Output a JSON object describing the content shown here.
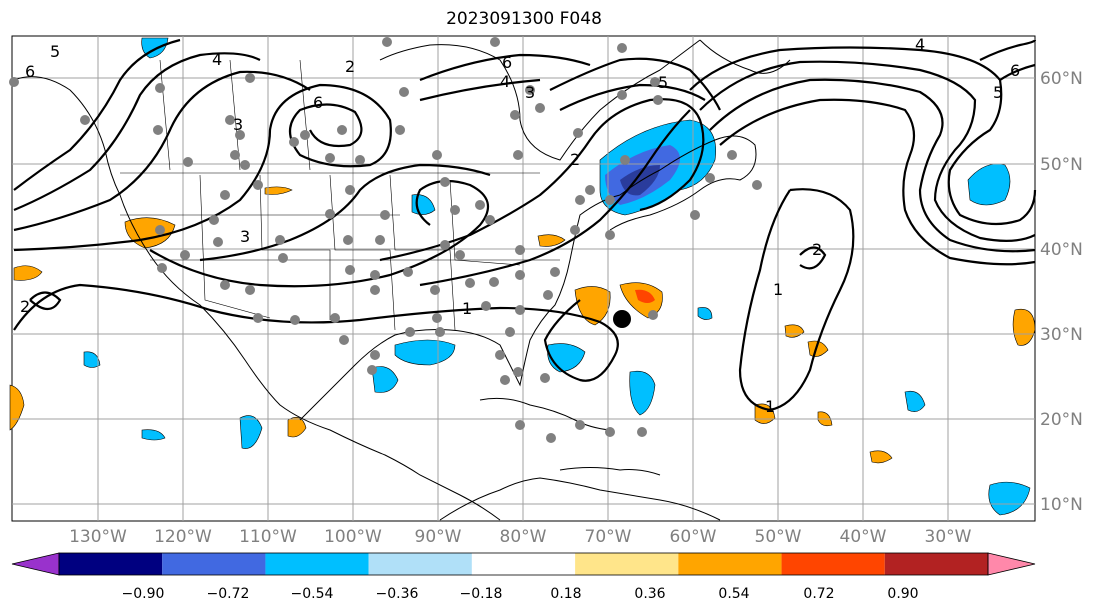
{
  "title": "2023091300 F048",
  "longitude_labels": [
    "130°W",
    "120°W",
    "110°W",
    "100°W",
    "90°W",
    "80°W",
    "70°W",
    "60°W",
    "50°W",
    "40°W",
    "30°W"
  ],
  "latitude_labels": [
    "60°N",
    "50°N",
    "40°N",
    "30°N",
    "20°N",
    "10°N"
  ],
  "colorbar": {
    "labels": [
      "−0.90",
      "−0.72",
      "−0.54",
      "−0.36",
      "−0.18",
      "0.18",
      "0.36",
      "0.54",
      "0.72",
      "0.90"
    ],
    "colors": [
      "#9932cc",
      "#000080",
      "#4169e1",
      "#00bfff",
      "#b0e0f8",
      "#ffffff",
      "#ffe58a",
      "#ffa500",
      "#ff4500",
      "#b22222",
      "#ff88aa"
    ]
  },
  "contour_labels": [
    "6",
    "5",
    "4",
    "3",
    "2",
    "1",
    "3",
    "2",
    "6",
    "6",
    "5",
    "4",
    "4",
    "5",
    "6",
    "2",
    "1",
    "1",
    "3",
    "2"
  ],
  "colors": {
    "storm_marker": "#000000",
    "station_dots": "#808080",
    "grid": "#a0a0a0"
  }
}
